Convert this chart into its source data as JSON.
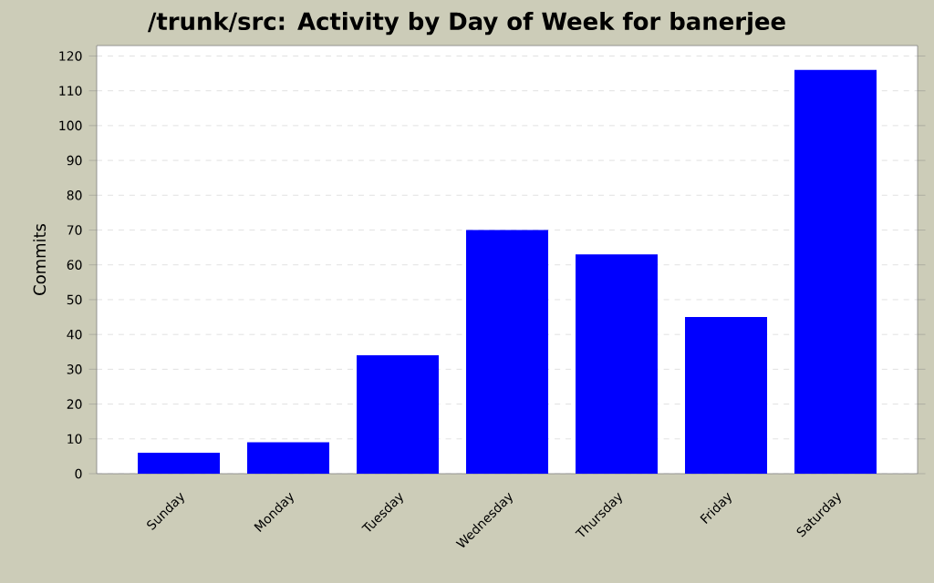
{
  "chart_data": {
    "type": "bar",
    "title": "/trunk/src: Activity by Day of Week for banerjee",
    "ylabel": "Commits",
    "categories": [
      "Sunday",
      "Monday",
      "Tuesday",
      "Wednesday",
      "Thursday",
      "Friday",
      "Saturday"
    ],
    "values": [
      6,
      9,
      34,
      70,
      63,
      45,
      116
    ],
    "color": "#0000ff",
    "ylim": [
      0,
      123
    ],
    "yticks": [
      0,
      10,
      20,
      30,
      40,
      50,
      60,
      70,
      80,
      90,
      100,
      110,
      120
    ],
    "grid": "y"
  }
}
